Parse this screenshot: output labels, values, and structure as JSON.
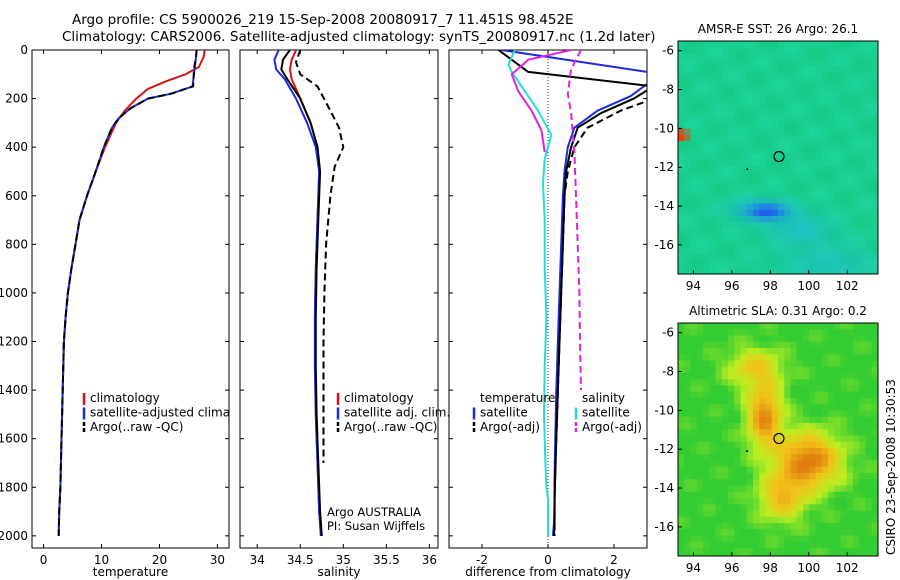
{
  "header": {
    "line1": "Argo profile: CS 5900026_219 15-Sep-2008 20080917_7 11.451S 98.452E",
    "line2": "Climatology: CARS2006. Satellite-adjusted climatology: synTS_20080917.nc (1.2d later)"
  },
  "side_label": "CSIRO 23-Sep-2008 10:30:53",
  "credit": {
    "line1": "Argo AUSTRALIA",
    "line2": "PI: Susan Wijffels"
  },
  "colors": {
    "climatology": "#dd1111",
    "satellite": "#1c2bd8",
    "argo": "#000000",
    "cyan": "#22dddd",
    "magenta": "#e020e0"
  },
  "chart_data": [
    {
      "type": "line",
      "xlabel": "temperature",
      "xlim": [
        -2,
        32
      ],
      "ylim": [
        0,
        2050
      ],
      "y_reversed": true,
      "xticks": [
        0,
        10,
        20,
        30
      ],
      "yticks": [
        0,
        200,
        400,
        600,
        800,
        1000,
        1200,
        1400,
        1600,
        1800,
        2000
      ],
      "legend": [
        {
          "label": "climatology",
          "color": "#dd1111",
          "dash": "solid"
        },
        {
          "label": "satellite-adjusted climatology",
          "color": "#1c2bd8",
          "dash": "solid"
        },
        {
          "label": "Argo(..raw -QC)",
          "color": "#000000",
          "dash": "dashed"
        }
      ],
      "series": [
        {
          "name": "climatology",
          "color": "#dd1111",
          "dash": "solid",
          "x": [
            27.8,
            27.6,
            26.8,
            24.5,
            21,
            18,
            16,
            14,
            12.5,
            10.6,
            9,
            7.5,
            6.2,
            5.5,
            4.8,
            4.2,
            3.8,
            3.5,
            3.3,
            3.1,
            2.9,
            2.7,
            2.6
          ],
          "y": [
            0,
            30,
            70,
            100,
            130,
            160,
            200,
            250,
            300,
            400,
            500,
            600,
            700,
            800,
            900,
            1000,
            1100,
            1200,
            1400,
            1600,
            1800,
            1900,
            2000
          ]
        },
        {
          "name": "satellite-adjusted climatology",
          "color": "#1c2bd8",
          "dash": "solid",
          "x": [
            26.4,
            26.3,
            26.1,
            25.7,
            22,
            18,
            15,
            13,
            11.8,
            10.4,
            9,
            7.5,
            6.2,
            5.5,
            4.8,
            4.2,
            3.8,
            3.5,
            3.3,
            3.1,
            2.9,
            2.7,
            2.6
          ],
          "y": [
            0,
            30,
            70,
            150,
            180,
            200,
            240,
            280,
            320,
            400,
            500,
            600,
            700,
            800,
            900,
            1000,
            1100,
            1200,
            1400,
            1600,
            1800,
            1900,
            2000
          ]
        },
        {
          "name": "Argo(..raw -QC)",
          "color": "#000000",
          "dash": "dashed",
          "x": [
            26.4,
            26.3,
            26.0,
            25.8,
            22,
            18,
            15,
            13,
            11.8,
            10.4,
            9,
            7.5,
            6.2,
            5.5,
            4.8,
            4.2,
            3.8,
            3.5,
            3.3,
            3.1,
            2.9,
            2.7,
            2.6
          ],
          "y": [
            0,
            30,
            70,
            150,
            180,
            200,
            240,
            280,
            320,
            400,
            500,
            600,
            700,
            800,
            900,
            1000,
            1100,
            1200,
            1400,
            1600,
            1800,
            1900,
            2000
          ]
        }
      ]
    },
    {
      "type": "line",
      "xlabel": "salinity",
      "xlim": [
        33.8,
        36.1
      ],
      "ylim": [
        0,
        2050
      ],
      "y_reversed": true,
      "xticks": [
        34,
        34.5,
        35,
        35.5,
        36
      ],
      "xticklabels": [
        "34",
        "34.5",
        "35",
        "35.5",
        "36"
      ],
      "legend": [
        {
          "label": "climatology",
          "color": "#dd1111",
          "dash": "solid"
        },
        {
          "label": "satellite adj. clim.",
          "color": "#1c2bd8",
          "dash": "solid"
        },
        {
          "label": "Argo(..raw -QC)",
          "color": "#000000",
          "dash": "dashed"
        }
      ],
      "series": [
        {
          "name": "climatology",
          "color": "#dd1111",
          "dash": "solid",
          "x": [
            34.45,
            34.4,
            34.38,
            34.4,
            34.5,
            34.62,
            34.7,
            34.72,
            34.7,
            34.68,
            34.67,
            34.67,
            34.68,
            34.7,
            34.72,
            34.74
          ],
          "y": [
            0,
            40,
            80,
            120,
            200,
            300,
            400,
            500,
            700,
            900,
            1100,
            1300,
            1500,
            1700,
            1900,
            2000
          ]
        },
        {
          "name": "satellite adj. clim.",
          "color": "#1c2bd8",
          "dash": "solid",
          "x": [
            34.25,
            34.2,
            34.22,
            34.32,
            34.45,
            34.58,
            34.68,
            34.72,
            34.7,
            34.68,
            34.67,
            34.67,
            34.68,
            34.7,
            34.72,
            34.74
          ],
          "y": [
            0,
            40,
            80,
            120,
            200,
            300,
            400,
            500,
            700,
            900,
            1100,
            1300,
            1500,
            1700,
            1900,
            2000
          ]
        },
        {
          "name": "Argo(..raw -QC)",
          "color": "#000000",
          "dash": "solid",
          "x": [
            34.38,
            34.3,
            34.28,
            34.35,
            34.5,
            34.62,
            34.7,
            34.73,
            34.71,
            34.69,
            34.68,
            34.68,
            34.69,
            34.71,
            34.73,
            34.75
          ],
          "y": [
            0,
            40,
            80,
            120,
            200,
            300,
            400,
            500,
            700,
            900,
            1100,
            1300,
            1500,
            1700,
            1900,
            2000
          ]
        },
        {
          "name": "Argo(..raw -QC)",
          "color": "#000000",
          "dash": "dashed",
          "x": [
            34.5,
            34.45,
            34.5,
            34.7,
            34.85,
            34.95,
            35.0,
            34.9,
            34.85,
            34.8,
            34.78,
            34.77,
            34.77,
            34.77,
            34.77
          ],
          "y": [
            0,
            50,
            100,
            150,
            250,
            320,
            400,
            480,
            600,
            800,
            1000,
            1200,
            1400,
            1600,
            1700
          ]
        }
      ]
    },
    {
      "type": "line",
      "xlabel": "difference from climatology",
      "xlim": [
        -3,
        3
      ],
      "ylim": [
        0,
        2050
      ],
      "y_reversed": true,
      "xticks": [
        -2,
        0,
        2
      ],
      "zero_line": "dotted",
      "legend_left": [
        {
          "label": "temperature",
          "color": "",
          "dash": "none"
        },
        {
          "label": "satellite",
          "color": "#1c2bd8",
          "dash": "solid"
        },
        {
          "label": "Argo(-adj)",
          "color": "#000000",
          "dash": "dashed"
        }
      ],
      "legend_right": [
        {
          "label": "salinity",
          "color": "",
          "dash": "none"
        },
        {
          "label": "satellite",
          "color": "#22dddd",
          "dash": "solid"
        },
        {
          "label": "Argo(-adj)",
          "color": "#e020e0",
          "dash": "dashed"
        }
      ],
      "series": [
        {
          "name": "satellite",
          "color": "#1c2bd8",
          "dash": "solid",
          "x": [
            -1.4,
            3.0,
            3.2,
            2.5,
            1.5,
            0.8,
            0.6,
            0.5,
            0.45,
            0.4,
            0.35,
            0.3,
            0.25,
            0.22,
            0.2,
            0.2,
            0.18,
            0.15
          ],
          "y": [
            0,
            90,
            120,
            190,
            250,
            320,
            400,
            500,
            600,
            800,
            1000,
            1200,
            1400,
            1600,
            1750,
            1850,
            1950,
            2000
          ]
        },
        {
          "name": "Argo(-adj)",
          "color": "#000000",
          "dash": "solid",
          "x": [
            -1.5,
            -0.6,
            3.2,
            2.6,
            1.6,
            0.9,
            0.7,
            0.55,
            0.5,
            0.45,
            0.4,
            0.35,
            0.3,
            0.25,
            0.22,
            0.2,
            0.2,
            0.18
          ],
          "y": [
            0,
            90,
            150,
            200,
            260,
            320,
            400,
            500,
            600,
            800,
            1000,
            1200,
            1400,
            1600,
            1750,
            1850,
            1950,
            2000
          ]
        },
        {
          "name": "Argo(-adj)",
          "color": "#000000",
          "dash": "dashed",
          "x": [
            3.2,
            2.2,
            1.2,
            0.8,
            0.6,
            0.5,
            0.45,
            0.4,
            0.35,
            0.3,
            0.25,
            0.2,
            0.2
          ],
          "y": [
            200,
            250,
            320,
            400,
            500,
            600,
            800,
            1000,
            1200,
            1400,
            1600,
            1800,
            2000
          ]
        },
        {
          "name": "satellite",
          "color": "#22dddd",
          "dash": "solid",
          "x": [
            -1.0,
            -1.2,
            -1.1,
            -0.8,
            -0.3,
            0.1,
            -0.1,
            -0.15,
            -0.1,
            -0.1,
            -0.05,
            -0.1,
            -0.12,
            -0.08,
            -0.05,
            0.0,
            0.0,
            0.0
          ],
          "y": [
            0,
            60,
            90,
            150,
            250,
            350,
            450,
            550,
            700,
            900,
            1100,
            1300,
            1500,
            1700,
            1800,
            1850,
            1950,
            2000
          ]
        },
        {
          "name": "Argo(-adj)",
          "color": "#e020e0",
          "dash": "solid",
          "x": [
            0.7,
            -0.6,
            -1.1,
            -0.9,
            -0.5,
            -0.2,
            -0.1
          ],
          "y": [
            0,
            40,
            100,
            170,
            250,
            330,
            420
          ]
        },
        {
          "name": "Argo(-adj)",
          "color": "#e020e0",
          "dash": "dashed",
          "x": [
            1.0,
            0.7,
            0.6,
            0.7,
            0.75,
            0.8,
            0.85,
            0.9,
            0.95,
            0.97,
            1.0
          ],
          "y": [
            0,
            80,
            180,
            260,
            340,
            420,
            600,
            800,
            1000,
            1200,
            1400
          ]
        }
      ]
    },
    {
      "type": "heatmap",
      "title": "AMSR-E SST: 26 Argo: 26.1",
      "xlim": [
        93.2,
        103.6
      ],
      "ylim": [
        -17.5,
        -5.5
      ],
      "xticks": [
        94,
        96,
        98,
        100,
        102
      ],
      "yticks": [
        -6,
        -8,
        -10,
        -12,
        -14,
        -16
      ],
      "colors": {
        "background": "#1fd6a0",
        "mid": "#12c880",
        "low": "#22b8e6",
        "cold": "#2060e8",
        "warm": "#ff3300"
      },
      "float_position": [
        98.45,
        -11.45
      ]
    },
    {
      "type": "heatmap",
      "title": "Altimetric SLA: 0.31 Argo: 0.2",
      "xlim": [
        93.2,
        103.6
      ],
      "ylim": [
        -17.5,
        -5.5
      ],
      "xticks": [
        94,
        96,
        98,
        100,
        102
      ],
      "yticks": [
        -6,
        -8,
        -10,
        -12,
        -14,
        -16
      ],
      "colors": {
        "background": "#33cc33",
        "mid": "#bbee22",
        "high": "#f2c21a",
        "peak": "#e07a10"
      },
      "float_position": [
        98.45,
        -11.45
      ]
    }
  ]
}
